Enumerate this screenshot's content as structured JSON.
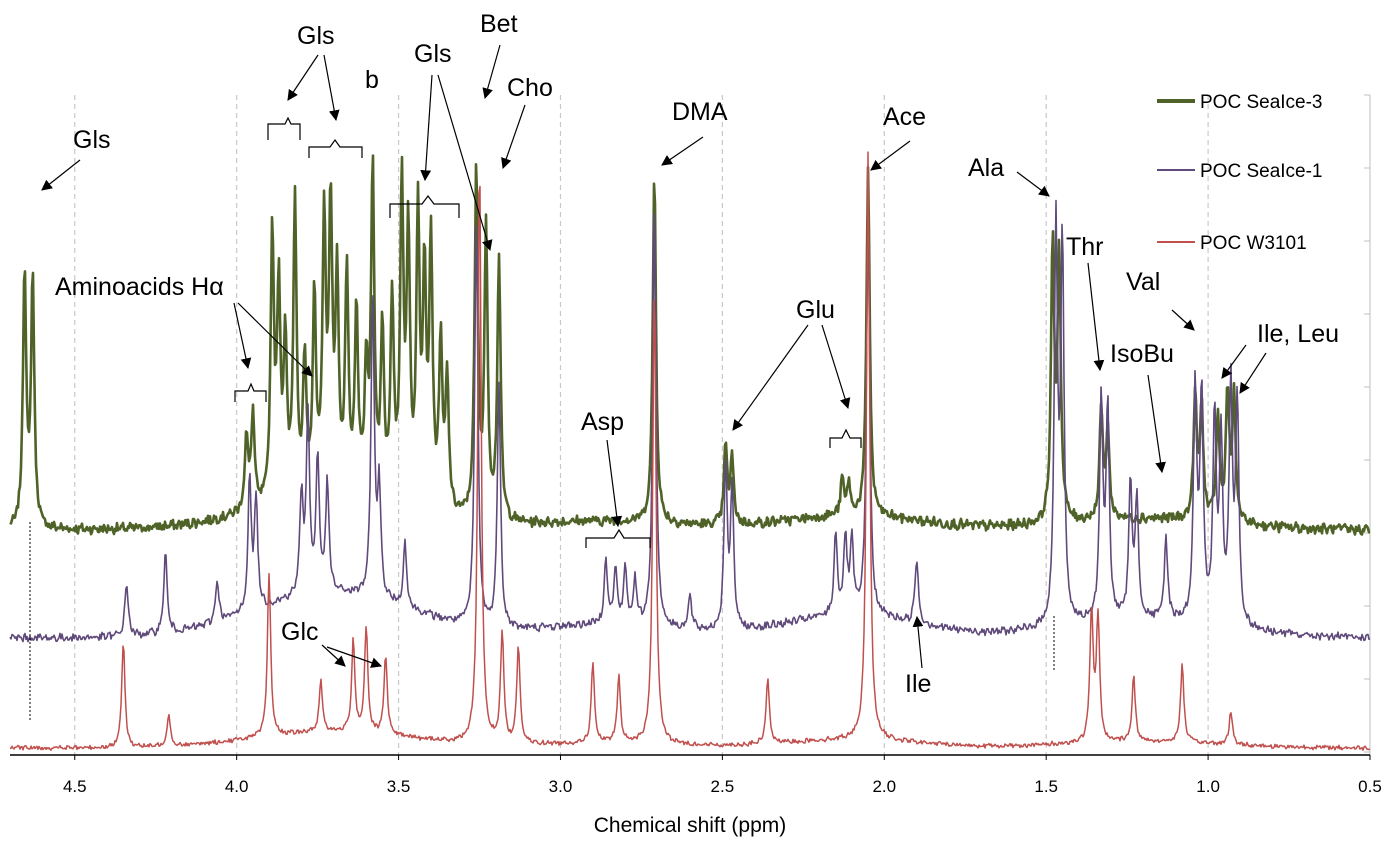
{
  "chart_data": {
    "type": "line",
    "xlabel": "Chemical shift (ppm)",
    "xlim": [
      4.7,
      0.5
    ],
    "x_reversed": true,
    "x_ticks": [
      "4.5",
      "4.0",
      "3.5",
      "3.0",
      "2.5",
      "2.0",
      "1.5",
      "1.0",
      "0.5"
    ],
    "grid": "vertical dashed",
    "legend_position": "top-right",
    "series": [
      {
        "name": "POC SeaIce-3",
        "color": "#4f6228",
        "peaks": [
          {
            "ppm": 4.655,
            "h": 0.59
          },
          {
            "ppm": 4.63,
            "h": 0.57
          },
          {
            "ppm": 3.97,
            "h": 0.17
          },
          {
            "ppm": 3.95,
            "h": 0.22
          },
          {
            "ppm": 3.89,
            "h": 0.62
          },
          {
            "ppm": 3.87,
            "h": 0.48
          },
          {
            "ppm": 3.85,
            "h": 0.35
          },
          {
            "ppm": 3.82,
            "h": 0.68
          },
          {
            "ppm": 3.79,
            "h": 0.3
          },
          {
            "ppm": 3.76,
            "h": 0.45
          },
          {
            "ppm": 3.73,
            "h": 0.62
          },
          {
            "ppm": 3.71,
            "h": 0.65
          },
          {
            "ppm": 3.69,
            "h": 0.48
          },
          {
            "ppm": 3.66,
            "h": 0.5
          },
          {
            "ppm": 3.63,
            "h": 0.42
          },
          {
            "ppm": 3.6,
            "h": 0.28
          },
          {
            "ppm": 3.58,
            "h": 0.75
          },
          {
            "ppm": 3.55,
            "h": 0.38
          },
          {
            "ppm": 3.52,
            "h": 0.45
          },
          {
            "ppm": 3.49,
            "h": 0.72
          },
          {
            "ppm": 3.47,
            "h": 0.6
          },
          {
            "ppm": 3.44,
            "h": 0.65
          },
          {
            "ppm": 3.42,
            "h": 0.52
          },
          {
            "ppm": 3.4,
            "h": 0.6
          },
          {
            "ppm": 3.37,
            "h": 0.38
          },
          {
            "ppm": 3.35,
            "h": 0.3
          },
          {
            "ppm": 3.26,
            "h": 0.8
          },
          {
            "ppm": 3.23,
            "h": 0.65
          },
          {
            "ppm": 3.19,
            "h": 0.6
          },
          {
            "ppm": 2.71,
            "h": 0.8
          },
          {
            "ppm": 2.49,
            "h": 0.18
          },
          {
            "ppm": 2.47,
            "h": 0.15
          },
          {
            "ppm": 2.13,
            "h": 0.08
          },
          {
            "ppm": 2.11,
            "h": 0.07
          },
          {
            "ppm": 2.05,
            "h": 0.8
          },
          {
            "ppm": 1.48,
            "h": 0.62
          },
          {
            "ppm": 1.46,
            "h": 0.6
          },
          {
            "ppm": 1.33,
            "h": 0.25
          },
          {
            "ppm": 1.31,
            "h": 0.2
          },
          {
            "ppm": 1.04,
            "h": 0.28
          },
          {
            "ppm": 1.02,
            "h": 0.26
          },
          {
            "ppm": 0.97,
            "h": 0.24
          },
          {
            "ppm": 0.94,
            "h": 0.3
          },
          {
            "ppm": 0.92,
            "h": 0.28
          }
        ]
      },
      {
        "name": "POC SeaIce-1",
        "color": "#604a7b",
        "peaks": [
          {
            "ppm": 4.34,
            "h": 0.1
          },
          {
            "ppm": 4.22,
            "h": 0.15
          },
          {
            "ppm": 4.06,
            "h": 0.08
          },
          {
            "ppm": 3.96,
            "h": 0.24
          },
          {
            "ppm": 3.94,
            "h": 0.2
          },
          {
            "ppm": 3.8,
            "h": 0.18
          },
          {
            "ppm": 3.78,
            "h": 0.33
          },
          {
            "ppm": 3.75,
            "h": 0.25
          },
          {
            "ppm": 3.72,
            "h": 0.2
          },
          {
            "ppm": 3.58,
            "h": 0.55
          },
          {
            "ppm": 3.56,
            "h": 0.2
          },
          {
            "ppm": 3.48,
            "h": 0.12
          },
          {
            "ppm": 3.26,
            "h": 0.75
          },
          {
            "ppm": 3.19,
            "h": 0.45
          },
          {
            "ppm": 2.86,
            "h": 0.12
          },
          {
            "ppm": 2.83,
            "h": 0.1
          },
          {
            "ppm": 2.8,
            "h": 0.1
          },
          {
            "ppm": 2.77,
            "h": 0.08
          },
          {
            "ppm": 2.71,
            "h": 0.78
          },
          {
            "ppm": 2.6,
            "h": 0.06
          },
          {
            "ppm": 2.49,
            "h": 0.3
          },
          {
            "ppm": 2.47,
            "h": 0.25
          },
          {
            "ppm": 2.15,
            "h": 0.15
          },
          {
            "ppm": 2.12,
            "h": 0.14
          },
          {
            "ppm": 2.1,
            "h": 0.13
          },
          {
            "ppm": 2.05,
            "h": 0.75
          },
          {
            "ppm": 1.9,
            "h": 0.12
          },
          {
            "ppm": 1.47,
            "h": 0.72
          },
          {
            "ppm": 1.45,
            "h": 0.7
          },
          {
            "ppm": 1.33,
            "h": 0.4
          },
          {
            "ppm": 1.31,
            "h": 0.38
          },
          {
            "ppm": 1.24,
            "h": 0.25
          },
          {
            "ppm": 1.22,
            "h": 0.22
          },
          {
            "ppm": 1.13,
            "h": 0.15
          },
          {
            "ppm": 1.04,
            "h": 0.43
          },
          {
            "ppm": 1.02,
            "h": 0.41
          },
          {
            "ppm": 0.98,
            "h": 0.38
          },
          {
            "ppm": 0.96,
            "h": 0.33
          },
          {
            "ppm": 0.93,
            "h": 0.43
          },
          {
            "ppm": 0.91,
            "h": 0.41
          }
        ]
      },
      {
        "name": "POC W3101",
        "color": "#c0504d",
        "peaks": [
          {
            "ppm": 4.35,
            "h": 0.16
          },
          {
            "ppm": 4.21,
            "h": 0.05
          },
          {
            "ppm": 3.9,
            "h": 0.25
          },
          {
            "ppm": 3.74,
            "h": 0.08
          },
          {
            "ppm": 3.64,
            "h": 0.14
          },
          {
            "ppm": 3.6,
            "h": 0.16
          },
          {
            "ppm": 3.54,
            "h": 0.12
          },
          {
            "ppm": 3.25,
            "h": 0.9
          },
          {
            "ppm": 3.18,
            "h": 0.17
          },
          {
            "ppm": 3.13,
            "h": 0.15
          },
          {
            "ppm": 2.9,
            "h": 0.12
          },
          {
            "ppm": 2.82,
            "h": 0.1
          },
          {
            "ppm": 2.71,
            "h": 0.7
          },
          {
            "ppm": 2.36,
            "h": 0.1
          },
          {
            "ppm": 2.05,
            "h": 0.9
          },
          {
            "ppm": 1.36,
            "h": 0.2
          },
          {
            "ppm": 1.34,
            "h": 0.19
          },
          {
            "ppm": 1.23,
            "h": 0.1
          },
          {
            "ppm": 1.08,
            "h": 0.12
          },
          {
            "ppm": 0.93,
            "h": 0.05
          }
        ]
      }
    ],
    "annotations": [
      "Gls",
      "Gls",
      "b",
      "Gls",
      "Bet",
      "Cho",
      "DMA",
      "Ace",
      "Ala",
      "Thr",
      "Val",
      "IsoBu",
      "Ile, Leu",
      "Aminoacids Hα",
      "Asp",
      "Glu",
      "Glc",
      "Ile",
      "Gls"
    ]
  }
}
